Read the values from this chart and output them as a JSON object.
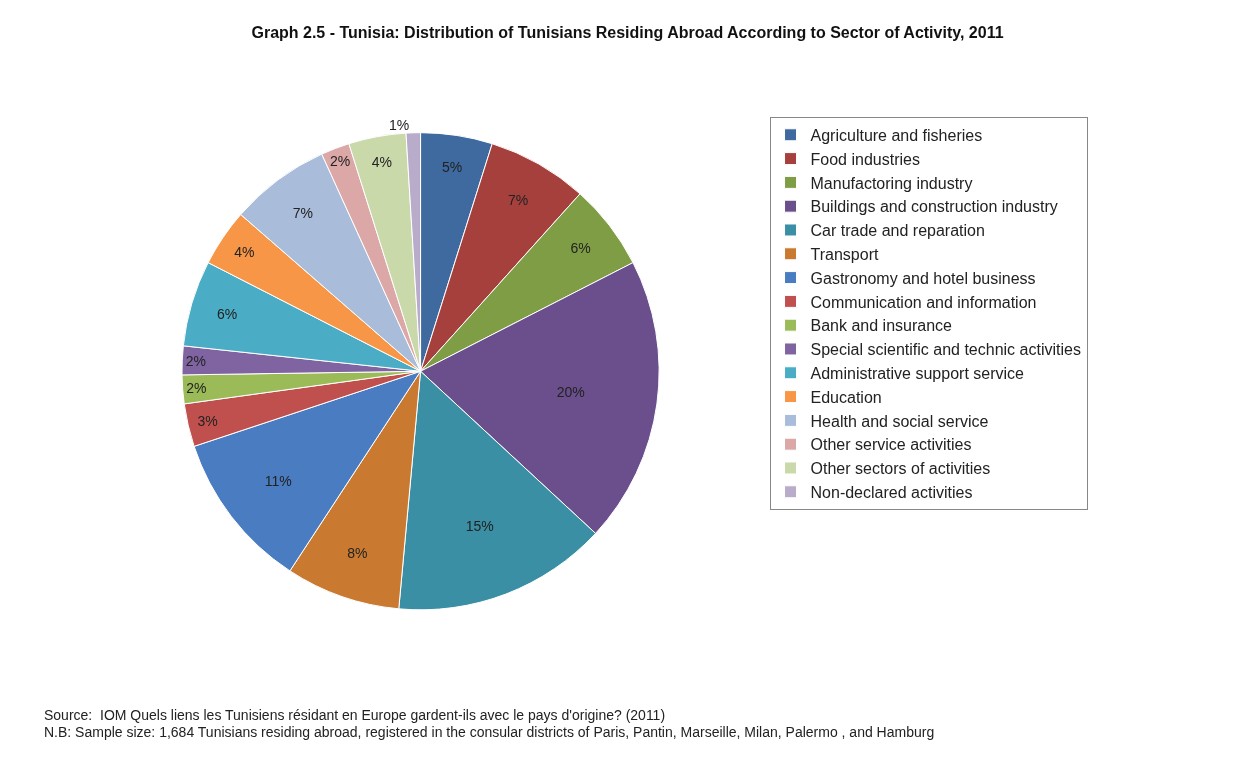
{
  "chart_data": {
    "type": "pie",
    "title": "Graph 2.5 - Tunisia: Distribution of Tunisians Residing Abroad According to Sector of Activity, 2011",
    "categories": [
      "Agriculture and fisheries",
      "Food industries",
      "Manufactoring industry",
      "Buildings and construction industry",
      "Car trade and reparation",
      "Transport",
      "Gastronomy and hotel business",
      "Communication and information",
      "Bank and insurance",
      "Special scientific and technic activities",
      "Administrative support service",
      "Education",
      "Health and social service",
      "Other service activities",
      "Other sectors of activities",
      "Non-declared activities"
    ],
    "values": [
      5,
      7,
      6,
      20,
      15,
      8,
      11,
      3,
      2,
      2,
      6,
      4,
      7,
      2,
      4,
      1
    ],
    "value_labels": [
      "5%",
      "7%",
      "6%",
      "20%",
      "15%",
      "8%",
      "11%",
      "3%",
      "2%",
      "2%",
      "6%",
      "4%",
      "7%",
      "2%",
      "4%",
      "1%"
    ],
    "colors": [
      "#3e6aa0",
      "#a6403d",
      "#7e9d45",
      "#6a4f8c",
      "#3a8fa4",
      "#c97a30",
      "#4a7cc1",
      "#c0504d",
      "#9bbb59",
      "#8064a2",
      "#4bacc6",
      "#f79646",
      "#a9bcda",
      "#dba8a7",
      "#c9d9aa",
      "#b9acca"
    ],
    "legend": "right",
    "annotations": [
      "Source:  IOM Quels liens les Tunisiens résidant en Europe gardent-ils avec le pays d'origine? (2011)",
      "N.B: Sample size: 1,684 Tunisians residing abroad, registered in the consular districts of Paris, Pantin, Marseille, Milan, Palermo , and Hamburg"
    ]
  }
}
